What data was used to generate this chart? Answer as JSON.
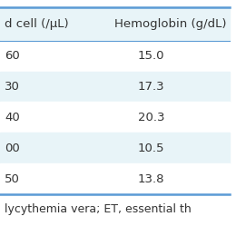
{
  "col1_header": "d cell (/μL)",
  "col2_header": "Hemoglobin (g/dL)",
  "col1_values": [
    "60",
    "30",
    "40",
    "00",
    "50"
  ],
  "col2_values": [
    "15.0",
    "17.3",
    "20.3",
    "10.5",
    "13.8"
  ],
  "footer_text": "lycythemia vera; ET, essential th",
  "header_color": "#e8f4f8",
  "row_colors": [
    "#ffffff",
    "#e8f4f8",
    "#ffffff",
    "#e8f4f8",
    "#ffffff"
  ],
  "line_color": "#5b9bd5",
  "text_color": "#333333",
  "font_size": 9.5,
  "header_font_size": 9.5,
  "footer_font_size": 9.0,
  "background_color": "#ffffff"
}
